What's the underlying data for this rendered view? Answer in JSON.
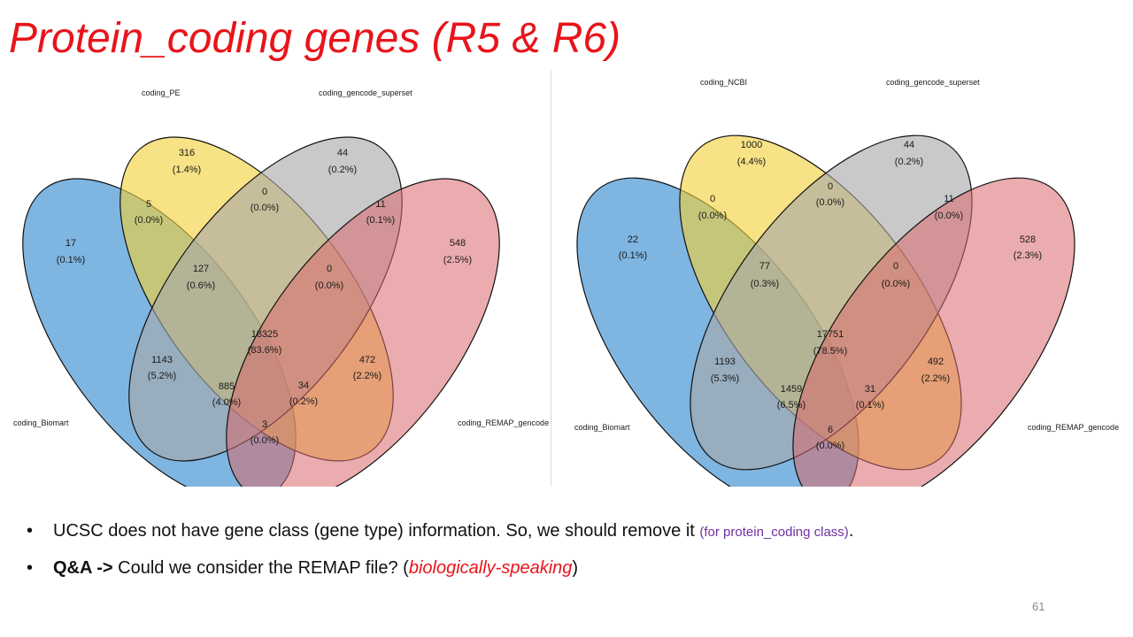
{
  "slide": {
    "title": "Protein_coding genes (R5 & R6)",
    "page_number": "61"
  },
  "bullets": [
    {
      "text": "UCSC does not have gene class (gene type) information. So, we should remove it ",
      "note": "(for protein_coding class)",
      "end": "."
    },
    {
      "label": "Q&A ->",
      "text": " Could we consider the REMAP file? (",
      "emphasis": "biologically-speaking",
      "end": ")"
    }
  ],
  "venn_diagrams": [
    {
      "set_colors": [
        "#2e88ce",
        "#f2d13a",
        "#a8a8a8",
        "#d9686b"
      ],
      "sets": [
        "coding_Biomart",
        "coding_PE",
        "coding_gencode_superset",
        "coding_REMAP_gencode"
      ],
      "regions": [
        {
          "region": "Biomart only",
          "count": "17",
          "pct": "(0.1%)"
        },
        {
          "region": "PE only",
          "count": "316",
          "pct": "(1.4%)"
        },
        {
          "region": "gencode_superset only",
          "count": "44",
          "pct": "(0.2%)"
        },
        {
          "region": "REMAP only",
          "count": "548",
          "pct": "(2.5%)"
        },
        {
          "region": "Biomart & PE",
          "count": "5",
          "pct": "(0.0%)"
        },
        {
          "region": "PE & gencode_superset",
          "count": "0",
          "pct": "(0.0%)"
        },
        {
          "region": "gencode_superset & REMAP",
          "count": "11",
          "pct": "(0.1%)"
        },
        {
          "region": "Biomart & PE & gencode_superset",
          "count": "127",
          "pct": "(0.6%)"
        },
        {
          "region": "PE & gencode_superset & REMAP",
          "count": "0",
          "pct": "(0.0%)"
        },
        {
          "region": "all four",
          "count": "18325",
          "pct": "(83.6%)"
        },
        {
          "region": "Biomart & gencode_superset",
          "count": "1143",
          "pct": "(5.2%)"
        },
        {
          "region": "PE & REMAP",
          "count": "472",
          "pct": "(2.2%)"
        },
        {
          "region": "Biomart & gencode_superset & REMAP",
          "count": "885",
          "pct": "(4.0%)"
        },
        {
          "region": "Biomart & PE & REMAP",
          "count": "34",
          "pct": "(0.2%)"
        },
        {
          "region": "Biomart & REMAP",
          "count": "3",
          "pct": "(0.0%)"
        }
      ]
    },
    {
      "set_colors": [
        "#2e88ce",
        "#f2d13a",
        "#a8a8a8",
        "#d9686b"
      ],
      "sets": [
        "coding_Biomart",
        "coding_NCBI",
        "coding_gencode_superset",
        "coding_REMAP_gencode"
      ],
      "regions": [
        {
          "region": "Biomart only",
          "count": "22",
          "pct": "(0.1%)"
        },
        {
          "region": "NCBI only",
          "count": "1000",
          "pct": "(4.4%)"
        },
        {
          "region": "gencode_superset only",
          "count": "44",
          "pct": "(0.2%)"
        },
        {
          "region": "REMAP only",
          "count": "528",
          "pct": "(2.3%)"
        },
        {
          "region": "Biomart & NCBI",
          "count": "0",
          "pct": "(0.0%)"
        },
        {
          "region": "NCBI & gencode_superset",
          "count": "0",
          "pct": "(0.0%)"
        },
        {
          "region": "gencode_superset & REMAP",
          "count": "11",
          "pct": "(0.0%)"
        },
        {
          "region": "Biomart & NCBI & gencode_superset",
          "count": "77",
          "pct": "(0.3%)"
        },
        {
          "region": "NCBI & gencode_superset & REMAP",
          "count": "0",
          "pct": "(0.0%)"
        },
        {
          "region": "all four",
          "count": "17751",
          "pct": "(78.5%)"
        },
        {
          "region": "Biomart & gencode_superset",
          "count": "1193",
          "pct": "(5.3%)"
        },
        {
          "region": "NCBI & REMAP",
          "count": "492",
          "pct": "(2.2%)"
        },
        {
          "region": "Biomart & gencode_superset & REMAP",
          "count": "1459",
          "pct": "(6.5%)"
        },
        {
          "region": "Biomart & NCBI & REMAP",
          "count": "31",
          "pct": "(0.1%)"
        },
        {
          "region": "Biomart & REMAP",
          "count": "6",
          "pct": "(0.0%)"
        }
      ]
    }
  ]
}
